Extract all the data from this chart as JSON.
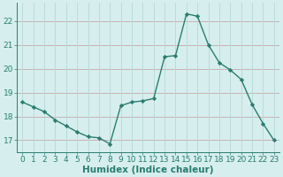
{
  "x": [
    0,
    1,
    2,
    3,
    4,
    5,
    6,
    7,
    8,
    9,
    10,
    11,
    12,
    13,
    14,
    15,
    16,
    17,
    18,
    19,
    20,
    21,
    22,
    23
  ],
  "y": [
    18.6,
    18.4,
    18.2,
    17.85,
    17.6,
    17.35,
    17.15,
    17.1,
    16.85,
    18.45,
    18.6,
    18.65,
    18.75,
    20.5,
    20.55,
    22.3,
    22.2,
    21.0,
    20.25,
    19.95,
    19.55,
    18.5,
    17.7,
    17.0
  ],
  "line_color": "#2a7d70",
  "marker": "D",
  "marker_size": 2.2,
  "line_width": 1.0,
  "bg_color": "#d6eeee",
  "grid_color_h": "#c8a8a8",
  "grid_color_v": "#b8d8d8",
  "xlabel": "Humidex (Indice chaleur)",
  "xlabel_fontsize": 7.5,
  "tick_fontsize": 6.5,
  "ylim": [
    16.5,
    22.75
  ],
  "yticks": [
    17,
    18,
    19,
    20,
    21,
    22
  ],
  "xticks": [
    0,
    1,
    2,
    3,
    4,
    5,
    6,
    7,
    8,
    9,
    10,
    11,
    12,
    13,
    14,
    15,
    16,
    17,
    18,
    19,
    20,
    21,
    22,
    23
  ]
}
